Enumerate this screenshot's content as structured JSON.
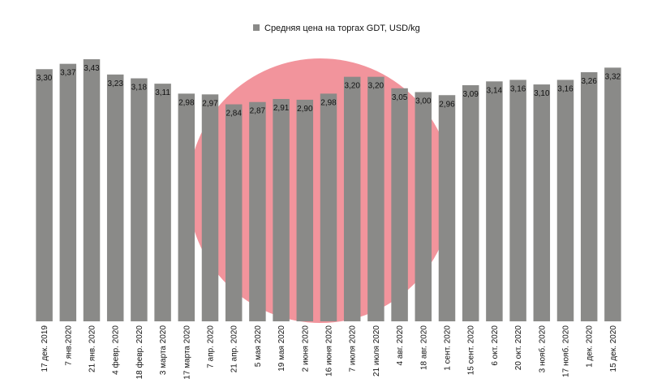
{
  "chart_data": {
    "type": "bar",
    "legend": {
      "label": "Средняя цена на торгах GDT,  USD/kg",
      "position": "top-center",
      "color": "#8a8a88"
    },
    "bar_color": "#8a8a88",
    "watermark_color": "#f2949c",
    "categories": [
      "17 дек. 2019",
      "7 янв.2020",
      "21 янв. 2020",
      "4 февр. 2020",
      "18 февр. 2020",
      "3 марта 2020",
      "17 марта 2020",
      "7 апр. 2020",
      "21 апр. 2020",
      "5 мая 2020",
      "19 мая 2020",
      "2 июня 2020",
      "16 июня 2020",
      "7 июля 2020",
      "21 июля 2020",
      "4 авг. 2020",
      "18 авг. 2020",
      "1 сент. 2020",
      "15 сент. 2020",
      "6 окт. 2020",
      "20 окт. 2020",
      "3 нояб. 2020",
      "17 нояб. 2020",
      "1 дек. 2020",
      "15 дек. 2020"
    ],
    "values": [
      3.3,
      3.37,
      3.43,
      3.23,
      3.18,
      3.11,
      2.98,
      2.97,
      2.84,
      2.87,
      2.91,
      2.9,
      2.98,
      3.2,
      3.2,
      3.05,
      3.0,
      2.96,
      3.09,
      3.14,
      3.16,
      3.1,
      3.16,
      3.26,
      3.32
    ],
    "data_labels": [
      "3,30",
      "3,37",
      "3,43",
      "3,23",
      "3,18",
      "3,11",
      "2,98",
      "2,97",
      "2,84",
      "2,87",
      "2,91",
      "2,90",
      "2,98",
      "3,20",
      "3,20",
      "3,05",
      "3,00",
      "2,96",
      "3,09",
      "3,14",
      "3,16",
      "3,10",
      "3,16",
      "3,26",
      "3,32"
    ],
    "ylim": [
      0,
      3.43
    ],
    "grid": false
  }
}
